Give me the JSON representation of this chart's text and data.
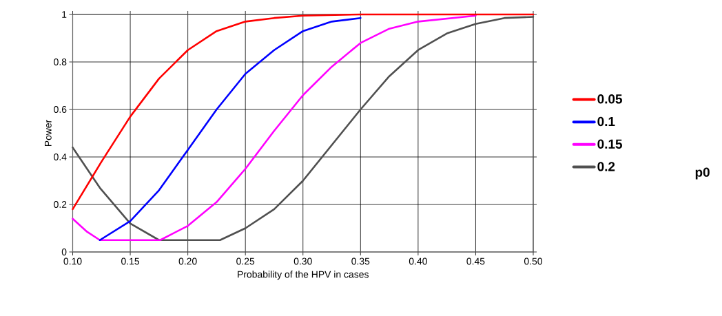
{
  "chart_data": {
    "type": "line",
    "xlabel": "Probability of the HPV in cases",
    "ylabel": "Power",
    "legend_title": "p0",
    "legend": "right",
    "grid": true,
    "line_style": "solid",
    "marker": "none",
    "xlim": [
      0.1,
      0.5
    ],
    "ylim": [
      0,
      1
    ],
    "xticks": [
      {
        "value": 0.1,
        "label": "0.10"
      },
      {
        "value": 0.15,
        "label": "0.15"
      },
      {
        "value": 0.2,
        "label": "0.20"
      },
      {
        "value": 0.25,
        "label": "0.25"
      },
      {
        "value": 0.3,
        "label": "0.30"
      },
      {
        "value": 0.35,
        "label": "0.35"
      },
      {
        "value": 0.4,
        "label": "0.40"
      },
      {
        "value": 0.45,
        "label": "0.45"
      },
      {
        "value": 0.5,
        "label": "0.50"
      }
    ],
    "yticks": [
      0,
      0.2,
      0.4,
      0.6,
      0.8,
      1
    ],
    "series": [
      {
        "name": "0.05",
        "color": "#ff0000",
        "x": [
          0.1,
          0.125,
          0.15,
          0.175,
          0.2,
          0.225,
          0.25,
          0.275,
          0.3,
          0.35,
          0.4,
          0.5
        ],
        "values": [
          0.18,
          0.38,
          0.57,
          0.73,
          0.85,
          0.93,
          0.97,
          0.985,
          0.995,
          1,
          1,
          1
        ]
      },
      {
        "name": "0.1",
        "color": "#0000ff",
        "x": [
          0.1236,
          0.15,
          0.175,
          0.2,
          0.225,
          0.25,
          0.275,
          0.3,
          0.325,
          0.35
        ],
        "values": [
          0.05,
          0.13,
          0.26,
          0.43,
          0.6,
          0.75,
          0.85,
          0.93,
          0.97,
          0.985
        ]
      },
      {
        "name": "0.15",
        "color": "#ff00ff",
        "x": [
          0.1,
          0.1125,
          0.1236,
          0.176,
          0.2,
          0.225,
          0.25,
          0.275,
          0.3,
          0.325,
          0.35,
          0.375,
          0.4,
          0.45
        ],
        "values": [
          0.14,
          0.085,
          0.05,
          0.05,
          0.11,
          0.21,
          0.35,
          0.51,
          0.66,
          0.78,
          0.88,
          0.94,
          0.97,
          0.995
        ]
      },
      {
        "name": "0.2",
        "color": "#505050",
        "x": [
          0.1,
          0.1236,
          0.15,
          0.175,
          0.228,
          0.25,
          0.275,
          0.3,
          0.325,
          0.35,
          0.375,
          0.4,
          0.425,
          0.45,
          0.475,
          0.5
        ],
        "values": [
          0.44,
          0.27,
          0.12,
          0.05,
          0.05,
          0.1,
          0.18,
          0.3,
          0.45,
          0.6,
          0.74,
          0.85,
          0.92,
          0.96,
          0.985,
          0.99
        ]
      }
    ]
  }
}
